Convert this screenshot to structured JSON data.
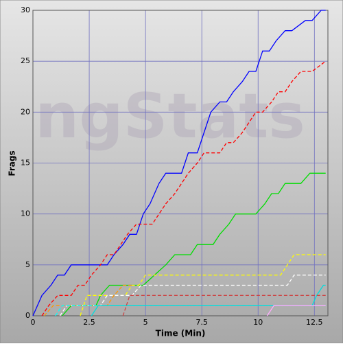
{
  "chart_data": {
    "type": "line",
    "watermark": "ngStats",
    "xlabel": "Time (Min)",
    "ylabel": "Frags",
    "xlim": [
      0,
      13.1
    ],
    "ylim": [
      0,
      30
    ],
    "xticks": [
      0,
      2.5,
      5,
      7.5,
      10,
      12.5
    ],
    "yticks": [
      0,
      5,
      10,
      15,
      20,
      25,
      30
    ],
    "grid": true,
    "series": [
      {
        "color": "#0000ff",
        "dash": false,
        "x": [
          0,
          0.4,
          0.8,
          1.1,
          1.4,
          1.7,
          3.3,
          3.6,
          4.0,
          4.3,
          4.6,
          4.9,
          5.2,
          5.6,
          5.9,
          6.6,
          6.9,
          7.3,
          7.6,
          7.9,
          8.3,
          8.6,
          8.9,
          9.3,
          9.6,
          9.9,
          10.2,
          10.5,
          10.8,
          11.2,
          11.5,
          12.1,
          12.4,
          12.8,
          13.0
        ],
        "values": [
          0,
          2,
          3,
          4,
          4,
          5,
          5,
          6,
          7,
          8,
          8,
          10,
          11,
          13,
          14,
          14,
          16,
          16,
          18,
          20,
          21,
          21,
          22,
          23,
          24,
          24,
          26,
          26,
          27,
          28,
          28,
          29,
          29,
          30,
          30
        ]
      },
      {
        "color": "#ff0000",
        "dash": true,
        "x": [
          0.4,
          0.7,
          1.1,
          1.7,
          2.0,
          2.3,
          2.6,
          3.0,
          3.3,
          3.6,
          3.9,
          4.2,
          4.6,
          5.3,
          5.6,
          5.9,
          6.3,
          6.6,
          6.9,
          7.3,
          7.6,
          8.3,
          8.6,
          8.9,
          9.3,
          9.6,
          9.9,
          10.2,
          10.6,
          10.9,
          11.2,
          11.5,
          11.9,
          12.4,
          13.0
        ],
        "values": [
          0,
          1,
          2,
          2,
          3,
          3,
          4,
          5,
          6,
          6,
          7,
          8,
          9,
          9,
          10,
          11,
          12,
          13,
          14,
          15,
          16,
          16,
          17,
          17,
          18,
          19,
          20,
          20,
          21,
          22,
          22,
          23,
          24,
          24,
          25
        ]
      },
      {
        "color": "#00dd00",
        "dash": false,
        "x": [
          1.3,
          1.7,
          2.8,
          3.0,
          3.4,
          4.9,
          5.4,
          5.9,
          6.3,
          7.0,
          7.3,
          8.0,
          8.3,
          8.7,
          9.0,
          9.9,
          10.3,
          10.6,
          10.9,
          11.2,
          11.9,
          12.3,
          13.0
        ],
        "values": [
          0,
          1,
          1,
          2,
          3,
          3,
          4,
          5,
          6,
          6,
          7,
          7,
          8,
          9,
          10,
          10,
          11,
          12,
          12,
          13,
          13,
          14,
          14
        ]
      },
      {
        "color": "#ffff00",
        "dash": true,
        "x": [
          2.1,
          2.4,
          4.1,
          4.4,
          4.7,
          5.0,
          11.0,
          11.3,
          11.6,
          13.0
        ],
        "values": [
          0,
          2,
          2,
          3,
          3,
          4,
          4,
          5,
          6,
          6
        ]
      },
      {
        "color": "#ffffff",
        "dash": true,
        "x": [
          1.2,
          1.5,
          3.0,
          3.3,
          4.4,
          4.8,
          11.3,
          11.6,
          13.0
        ],
        "values": [
          0,
          1,
          1,
          2,
          2,
          3,
          3,
          4,
          4
        ]
      },
      {
        "color": "#ff9900",
        "dash": true,
        "x": [
          0.5,
          0.9,
          3.3,
          3.6,
          4.0,
          4.4
        ],
        "values": [
          0,
          1,
          1,
          2,
          3,
          3
        ]
      },
      {
        "color": "#00ffff",
        "dash": true,
        "x": [
          1.0,
          1.3,
          13.0
        ],
        "values": [
          0,
          1,
          1
        ]
      },
      {
        "color": "#00dddd",
        "dash": false,
        "x": [
          2.6,
          2.9,
          12.4,
          12.6,
          12.9,
          13.0
        ],
        "values": [
          0,
          1,
          1,
          2,
          3,
          3
        ]
      },
      {
        "color": "#cc4444",
        "dash": true,
        "x": [
          4.0,
          4.3,
          13.0
        ],
        "values": [
          0,
          2,
          2
        ]
      },
      {
        "color": "#ffaaff",
        "dash": false,
        "x": [
          10.4,
          10.7,
          13.0
        ],
        "values": [
          0,
          1,
          1
        ]
      }
    ]
  }
}
